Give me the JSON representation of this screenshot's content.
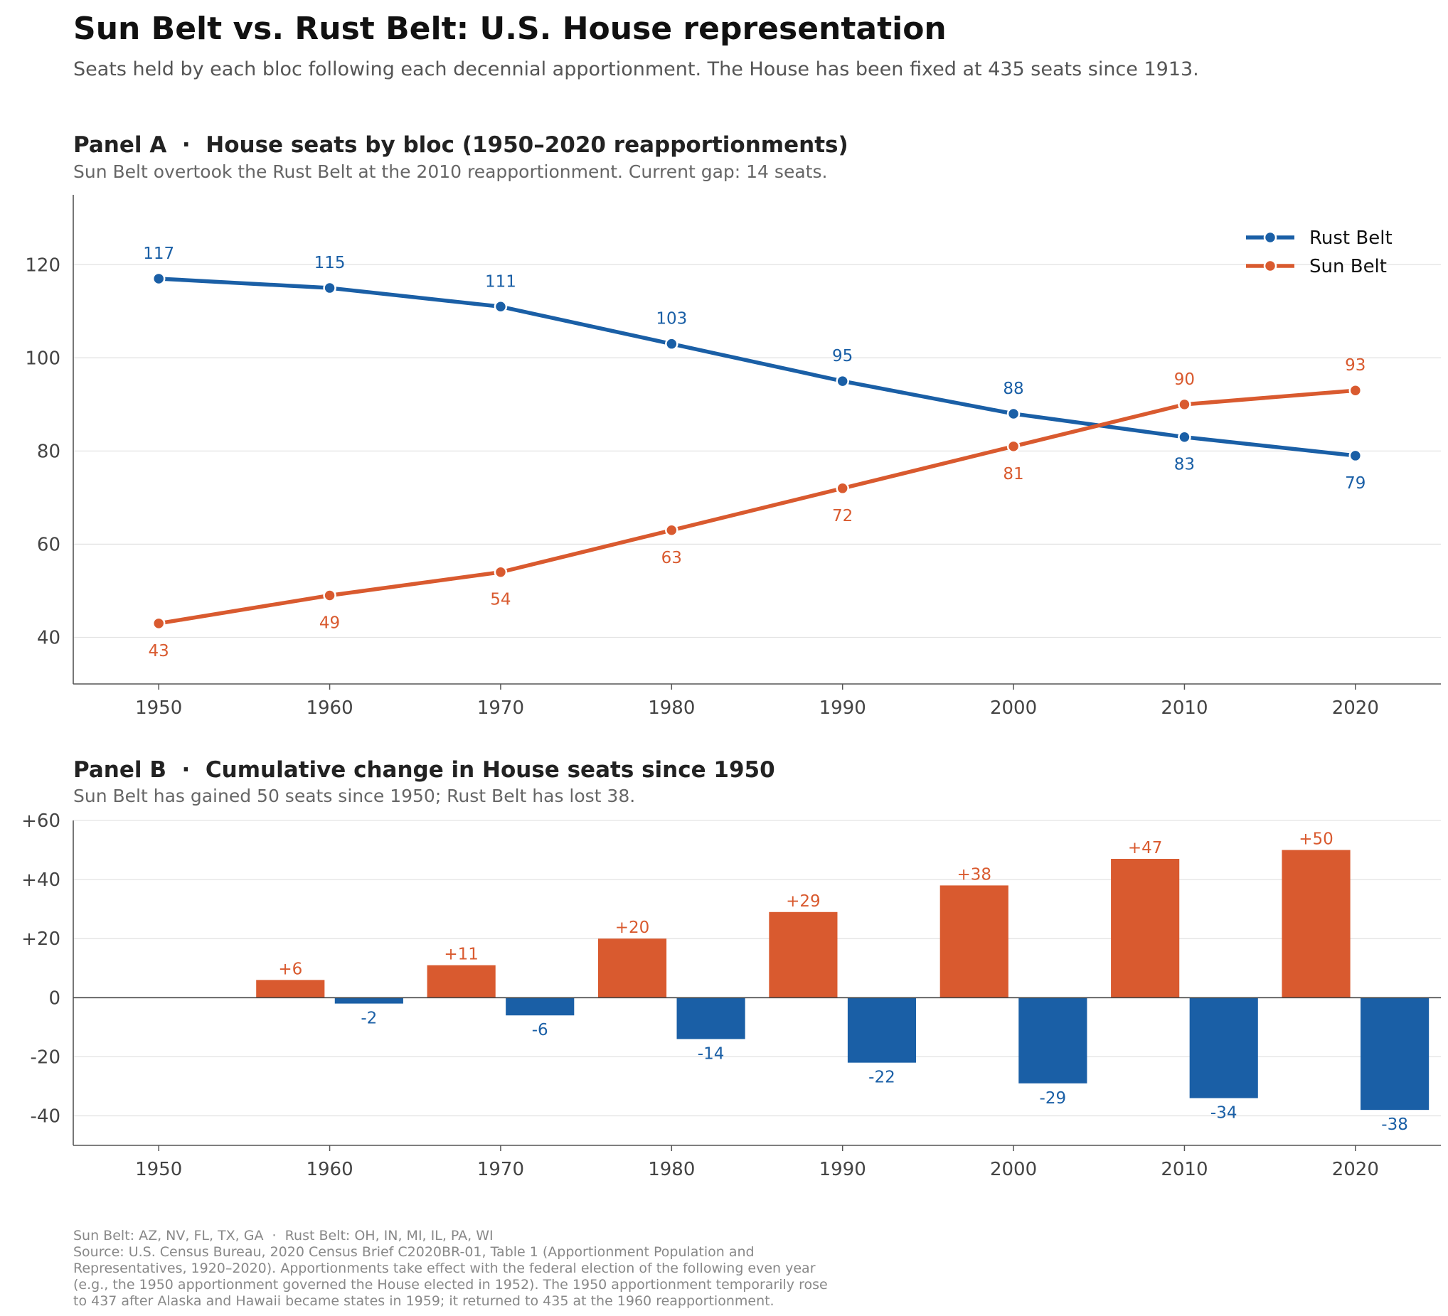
{
  "title": "Sun Belt vs. Rust Belt: U.S. House representation",
  "subtitle": "Seats held by each bloc following each decennial apportionment. The House has been fixed at 435 seats since 1913.",
  "colors": {
    "rust": "#1a5fa6",
    "sun": "#d95a2f"
  },
  "footer": [
    "Sun Belt: AZ, NV, FL, TX, GA  ·  Rust Belt: OH, IN, MI, IL, PA, WI",
    "Source: U.S. Census Bureau, 2020 Census Brief C2020BR-01, Table 1 (Apportionment Population and",
    "Representatives, 1920–2020). Apportionments take effect with the federal election of the following even year",
    "(e.g., the 1950 apportionment governed the House elected in 1952). The 1950 apportionment temporarily rose",
    "to 437 after Alaska and Hawaii became states in 1959; it returned to 435 at the 1960 reapportionment."
  ],
  "chart_data": [
    {
      "type": "line",
      "title": "Panel A  ·  House seats by bloc (1950–2020 reapportionments)",
      "subtitle": "Sun Belt overtook the Rust Belt at the 2010 reapportionment. Current gap: 14 seats.",
      "x": [
        1950,
        1960,
        1970,
        1980,
        1990,
        2000,
        2010,
        2020
      ],
      "xlim": [
        1945,
        2025
      ],
      "ylim": [
        30,
        135
      ],
      "yticks": [
        40,
        60,
        80,
        100,
        120
      ],
      "grid": true,
      "legend": "top-right",
      "series": [
        {
          "name": "Rust Belt",
          "key": "rust",
          "values": [
            117,
            115,
            111,
            103,
            95,
            88,
            83,
            79
          ]
        },
        {
          "name": "Sun Belt",
          "key": "sun",
          "values": [
            43,
            49,
            54,
            63,
            72,
            81,
            90,
            93
          ]
        }
      ]
    },
    {
      "type": "bar",
      "title": "Panel B  ·  Cumulative change in House seats since 1950",
      "subtitle": "Sun Belt has gained 50 seats since 1950; Rust Belt has lost 38.",
      "categories": [
        1950,
        1960,
        1970,
        1980,
        1990,
        2000,
        2010,
        2020
      ],
      "xlim": [
        1945,
        2025
      ],
      "ylim": [
        -50,
        60
      ],
      "yticks": [
        -40,
        -20,
        0,
        20,
        40,
        60
      ],
      "ytick_labels": [
        "-40",
        "-20",
        "0",
        "+20",
        "+40",
        "+60"
      ],
      "grid": true,
      "series": [
        {
          "name": "Sun Belt",
          "key": "sun",
          "values": [
            0,
            6,
            11,
            20,
            29,
            38,
            47,
            50
          ],
          "labels": [
            "",
            "+6",
            "+11",
            "+20",
            "+29",
            "+38",
            "+47",
            "+50"
          ]
        },
        {
          "name": "Rust Belt",
          "key": "rust",
          "values": [
            0,
            -2,
            -6,
            -14,
            -22,
            -29,
            -34,
            -38
          ],
          "labels": [
            "",
            "-2",
            "-6",
            "-14",
            "-22",
            "-29",
            "-34",
            "-38"
          ]
        }
      ]
    }
  ]
}
